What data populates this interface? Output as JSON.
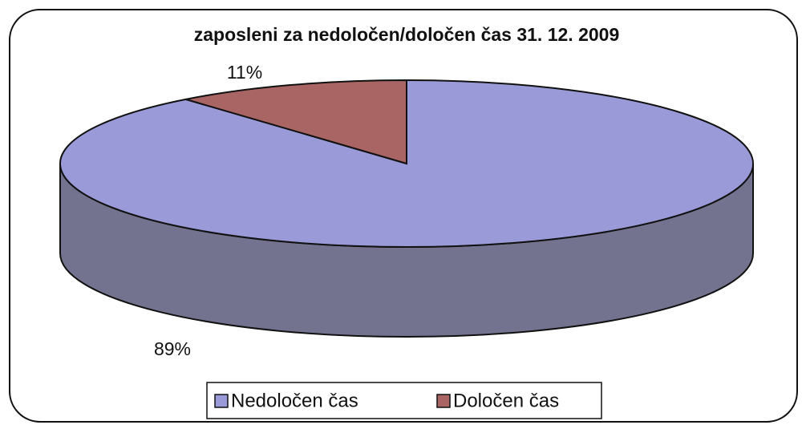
{
  "chart_data": {
    "type": "pie",
    "title": "zaposleni za nedoločen/določen čas 31. 12. 2009",
    "categories": [
      "Nedoločen čas",
      "Določen čas"
    ],
    "values": [
      89,
      11
    ],
    "value_labels": [
      "89%",
      "11%"
    ],
    "colors": [
      "#9a9ad8",
      "#a96464"
    ],
    "side_color": "#737390",
    "legend": "bottom"
  }
}
